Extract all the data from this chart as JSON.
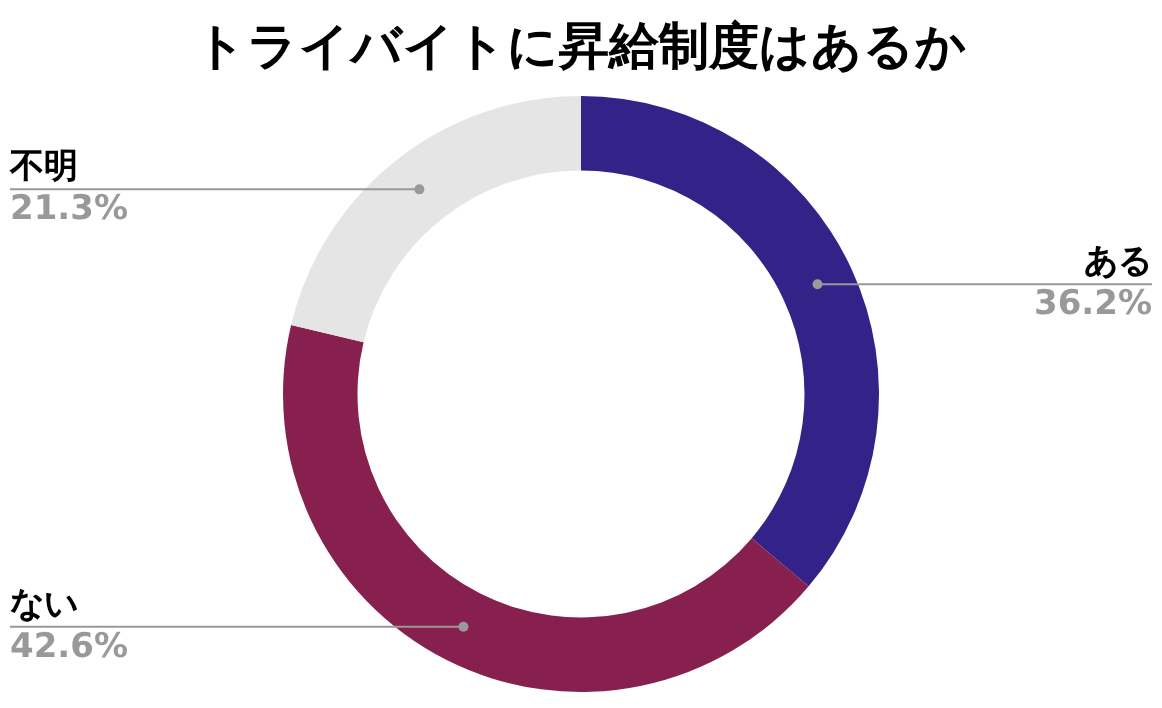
{
  "chart_data": {
    "type": "donut",
    "title": "トライバイトに昇給制度はあるか",
    "categories": [
      "ある",
      "ない",
      "不明"
    ],
    "values": [
      36.2,
      42.6,
      21.3
    ],
    "value_labels": [
      "36.2%",
      "42.6%",
      "21.3%"
    ],
    "colors": [
      "#332288",
      "#88204f",
      "#e5e5e5"
    ]
  }
}
